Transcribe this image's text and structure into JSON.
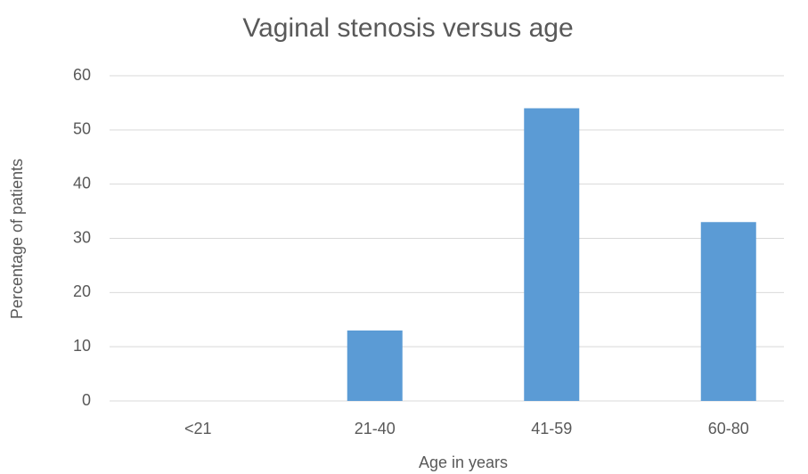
{
  "chart_data": {
    "type": "bar",
    "title": "Vaginal stenosis versus age",
    "x_label": "Age in years",
    "y_label": "Percentage of patients",
    "categories": [
      "<21",
      "21-40",
      "41-59",
      "60-80"
    ],
    "values": [
      0,
      13,
      54,
      33
    ],
    "color": "#5b9bd5",
    "ylim": [
      0,
      60
    ],
    "yticks": [
      0,
      10,
      20,
      30,
      40,
      50,
      60
    ],
    "grid": true
  }
}
